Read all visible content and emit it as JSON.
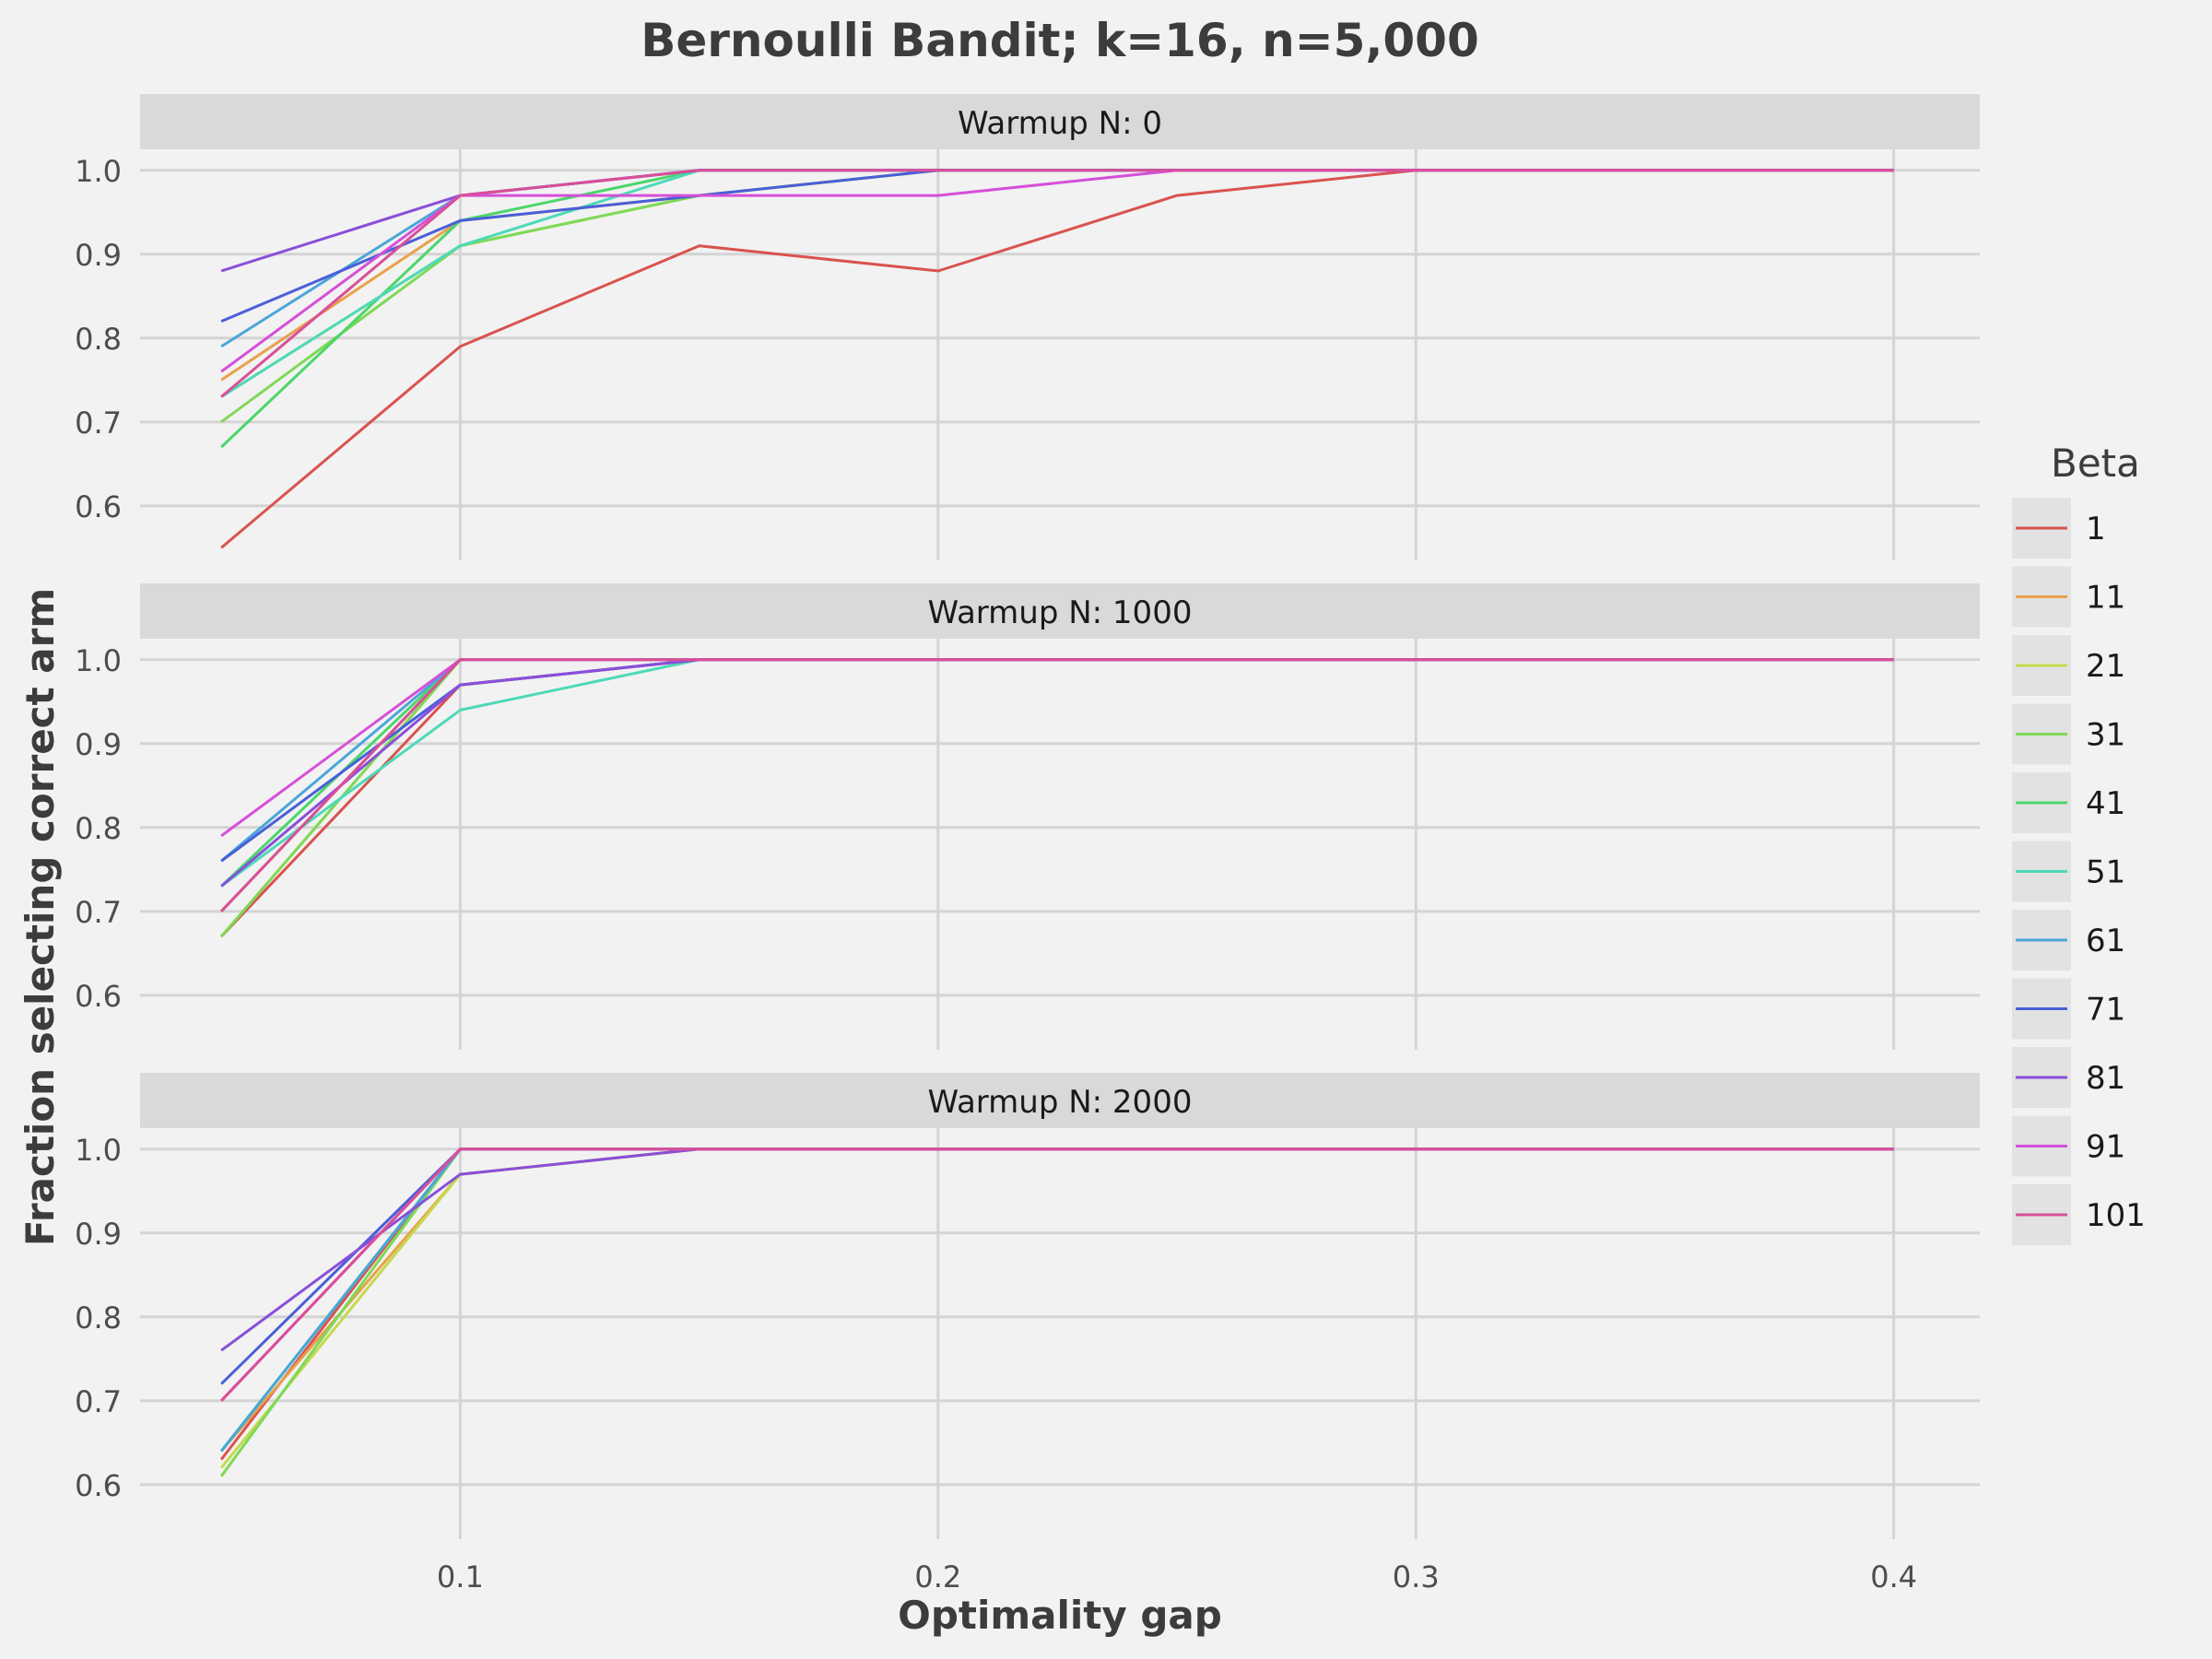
{
  "chart_data": {
    "type": "line",
    "title": "Bernoulli Bandit; k=16, n=5,000",
    "xlabel": "Optimality gap",
    "ylabel": "Fraction selecting correct arm",
    "x": [
      0.05,
      0.1,
      0.15,
      0.2,
      0.25,
      0.3,
      0.4
    ],
    "xlim": [
      0.033,
      0.418
    ],
    "ylim": [
      0.535,
      1.025
    ],
    "xticks": [
      0.1,
      0.2,
      0.3,
      0.4
    ],
    "xtick_labels": [
      "0.1",
      "0.2",
      "0.3",
      "0.4"
    ],
    "yticks": [
      0.6,
      0.7,
      0.8,
      0.9,
      1.0
    ],
    "ytick_labels": [
      "0.6",
      "0.7",
      "0.8",
      "0.9",
      "1.0"
    ],
    "grid": true,
    "legend_title": "Beta",
    "legend_position": "right",
    "legend": [
      {
        "name": "1",
        "color": "#d9534f"
      },
      {
        "name": "11",
        "color": "#e8a24a"
      },
      {
        "name": "21",
        "color": "#c5d94f"
      },
      {
        "name": "31",
        "color": "#7ed957"
      },
      {
        "name": "41",
        "color": "#4cd66a"
      },
      {
        "name": "51",
        "color": "#4dd9b8"
      },
      {
        "name": "61",
        "color": "#4aa6d9"
      },
      {
        "name": "71",
        "color": "#4a5fd9"
      },
      {
        "name": "81",
        "color": "#8a4fd9"
      },
      {
        "name": "91",
        "color": "#d64fd9"
      },
      {
        "name": "101",
        "color": "#d94f98"
      }
    ],
    "panels": [
      {
        "label": "Warmup N: 0",
        "series": [
          {
            "name": "1",
            "values": [
              0.55,
              0.79,
              0.91,
              0.88,
              0.97,
              1.0,
              1.0
            ]
          },
          {
            "name": "11",
            "values": [
              0.75,
              0.94,
              0.97,
              1.0,
              1.0,
              1.0,
              1.0
            ]
          },
          {
            "name": "21",
            "values": [
              0.73,
              0.91,
              0.97,
              1.0,
              1.0,
              1.0,
              1.0
            ]
          },
          {
            "name": "31",
            "values": [
              0.7,
              0.91,
              0.97,
              1.0,
              1.0,
              1.0,
              1.0
            ]
          },
          {
            "name": "41",
            "values": [
              0.67,
              0.94,
              1.0,
              1.0,
              1.0,
              1.0,
              1.0
            ]
          },
          {
            "name": "51",
            "values": [
              0.73,
              0.91,
              1.0,
              1.0,
              1.0,
              1.0,
              1.0
            ]
          },
          {
            "name": "61",
            "values": [
              0.79,
              0.97,
              1.0,
              1.0,
              1.0,
              1.0,
              1.0
            ]
          },
          {
            "name": "71",
            "values": [
              0.82,
              0.94,
              0.97,
              1.0,
              1.0,
              1.0,
              1.0
            ]
          },
          {
            "name": "81",
            "values": [
              0.88,
              0.97,
              1.0,
              1.0,
              1.0,
              1.0,
              1.0
            ]
          },
          {
            "name": "91",
            "values": [
              0.76,
              0.97,
              0.97,
              0.97,
              1.0,
              1.0,
              1.0
            ]
          },
          {
            "name": "101",
            "values": [
              0.73,
              0.97,
              1.0,
              1.0,
              1.0,
              1.0,
              1.0
            ]
          }
        ]
      },
      {
        "label": "Warmup N: 1000",
        "series": [
          {
            "name": "1",
            "values": [
              0.67,
              0.97,
              1.0,
              1.0,
              1.0,
              1.0,
              1.0
            ]
          },
          {
            "name": "11",
            "values": [
              0.7,
              1.0,
              1.0,
              1.0,
              1.0,
              1.0,
              1.0
            ]
          },
          {
            "name": "21",
            "values": [
              0.67,
              1.0,
              1.0,
              1.0,
              1.0,
              1.0,
              1.0
            ]
          },
          {
            "name": "31",
            "values": [
              0.67,
              1.0,
              1.0,
              1.0,
              1.0,
              1.0,
              1.0
            ]
          },
          {
            "name": "41",
            "values": [
              0.73,
              1.0,
              1.0,
              1.0,
              1.0,
              1.0,
              1.0
            ]
          },
          {
            "name": "51",
            "values": [
              0.73,
              0.94,
              1.0,
              1.0,
              1.0,
              1.0,
              1.0
            ]
          },
          {
            "name": "61",
            "values": [
              0.76,
              1.0,
              1.0,
              1.0,
              1.0,
              1.0,
              1.0
            ]
          },
          {
            "name": "71",
            "values": [
              0.76,
              0.97,
              1.0,
              1.0,
              1.0,
              1.0,
              1.0
            ]
          },
          {
            "name": "81",
            "values": [
              0.73,
              0.97,
              1.0,
              1.0,
              1.0,
              1.0,
              1.0
            ]
          },
          {
            "name": "91",
            "values": [
              0.79,
              1.0,
              1.0,
              1.0,
              1.0,
              1.0,
              1.0
            ]
          },
          {
            "name": "101",
            "values": [
              0.7,
              1.0,
              1.0,
              1.0,
              1.0,
              1.0,
              1.0
            ]
          }
        ]
      },
      {
        "label": "Warmup N: 2000",
        "series": [
          {
            "name": "1",
            "values": [
              0.63,
              1.0,
              1.0,
              1.0,
              1.0,
              1.0,
              1.0
            ]
          },
          {
            "name": "11",
            "values": [
              0.64,
              0.97,
              1.0,
              1.0,
              1.0,
              1.0,
              1.0
            ]
          },
          {
            "name": "21",
            "values": [
              0.62,
              0.97,
              1.0,
              1.0,
              1.0,
              1.0,
              1.0
            ]
          },
          {
            "name": "31",
            "values": [
              0.61,
              1.0,
              1.0,
              1.0,
              1.0,
              1.0,
              1.0
            ]
          },
          {
            "name": "41",
            "values": [
              0.64,
              1.0,
              1.0,
              1.0,
              1.0,
              1.0,
              1.0
            ]
          },
          {
            "name": "51",
            "values": [
              0.64,
              1.0,
              1.0,
              1.0,
              1.0,
              1.0,
              1.0
            ]
          },
          {
            "name": "61",
            "values": [
              0.64,
              1.0,
              1.0,
              1.0,
              1.0,
              1.0,
              1.0
            ]
          },
          {
            "name": "71",
            "values": [
              0.72,
              1.0,
              1.0,
              1.0,
              1.0,
              1.0,
              1.0
            ]
          },
          {
            "name": "81",
            "values": [
              0.76,
              0.97,
              1.0,
              1.0,
              1.0,
              1.0,
              1.0
            ]
          },
          {
            "name": "91",
            "values": [
              0.7,
              1.0,
              1.0,
              1.0,
              1.0,
              1.0,
              1.0
            ]
          },
          {
            "name": "101",
            "values": [
              0.7,
              1.0,
              1.0,
              1.0,
              1.0,
              1.0,
              1.0
            ]
          }
        ]
      }
    ]
  }
}
